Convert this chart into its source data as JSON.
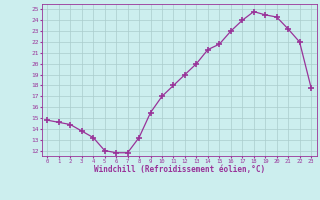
{
  "x": [
    0,
    1,
    2,
    3,
    4,
    5,
    6,
    7,
    8,
    9,
    10,
    11,
    12,
    13,
    14,
    15,
    16,
    17,
    18,
    19,
    20,
    21,
    22,
    23
  ],
  "y": [
    14.8,
    14.6,
    14.4,
    13.8,
    13.2,
    12.0,
    11.8,
    11.8,
    13.2,
    15.5,
    17.0,
    18.0,
    19.0,
    20.0,
    21.3,
    21.8,
    23.0,
    24.0,
    24.8,
    24.5,
    24.3,
    23.2,
    22.0,
    17.8
  ],
  "line_color": "#993399",
  "marker_color": "#993399",
  "bg_color": "#cceeee",
  "grid_color": "#aacccc",
  "xlabel": "Windchill (Refroidissement éolien,°C)",
  "tick_color": "#993399",
  "ylim": [
    11.5,
    25.5
  ],
  "yticks": [
    12,
    13,
    14,
    15,
    16,
    17,
    18,
    19,
    20,
    21,
    22,
    23,
    24,
    25
  ],
  "xticks": [
    0,
    1,
    2,
    3,
    4,
    5,
    6,
    7,
    8,
    9,
    10,
    11,
    12,
    13,
    14,
    15,
    16,
    17,
    18,
    19,
    20,
    21,
    22,
    23
  ]
}
